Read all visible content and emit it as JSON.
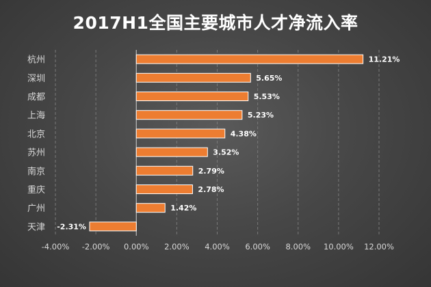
{
  "chart_data": {
    "type": "bar",
    "orientation": "horizontal",
    "title": "2017H1全国主要城市人才净流入率",
    "categories": [
      "杭州",
      "深圳",
      "成都",
      "上海",
      "北京",
      "苏州",
      "南京",
      "重庆",
      "广州",
      "天津"
    ],
    "values": [
      11.21,
      5.65,
      5.53,
      5.23,
      4.38,
      3.52,
      2.79,
      2.78,
      1.42,
      -2.31
    ],
    "data_labels": [
      "11.21%",
      "5.65%",
      "5.53%",
      "5.23%",
      "4.38%",
      "3.52%",
      "2.79%",
      "2.78%",
      "1.42%",
      "-2.31%"
    ],
    "xlim": [
      -4,
      12
    ],
    "x_ticks": [
      -4,
      -2,
      0,
      2,
      4,
      6,
      8,
      10,
      12
    ],
    "x_tick_labels": [
      "-4.00%",
      "-2.00%",
      "0.00%",
      "2.00%",
      "4.00%",
      "6.00%",
      "8.00%",
      "10.00%",
      "12.00%"
    ],
    "xlabel": "",
    "ylabel": "",
    "grid": "vertical-dashed",
    "legend": "none",
    "bar_color": "#ed7d31",
    "bar_edge_color": "#ffffff"
  }
}
